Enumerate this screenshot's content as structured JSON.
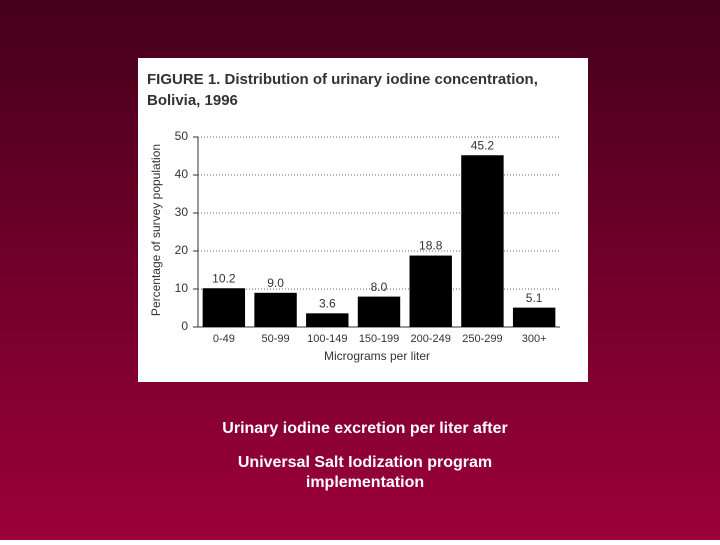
{
  "chart_data": {
    "type": "bar",
    "title": [
      "FIGURE 1. Distribution of urinary iodine concentration,",
      "Bolivia, 1996"
    ],
    "x_label": "Micrograms per liter",
    "y_label": "Percentage of survey population",
    "categories": [
      "0-49",
      "50-99",
      "100-149",
      "150-199",
      "200-249",
      "250-299",
      "300+"
    ],
    "values": [
      10.2,
      9.0,
      3.6,
      8.0,
      18.8,
      45.2,
      5.1
    ],
    "value_labels": [
      "10.2",
      "9.0",
      "3.6",
      "8.0",
      "18.8",
      "45.2",
      "5.1"
    ],
    "color": "#000000",
    "ylim": [
      0,
      50
    ],
    "yticks": [
      0,
      10,
      20,
      30,
      40,
      50
    ],
    "grid": true
  },
  "caption": [
    "Urinary iodine excretion per liter after",
    "Universal Salt Iodization program",
    "implementation"
  ]
}
